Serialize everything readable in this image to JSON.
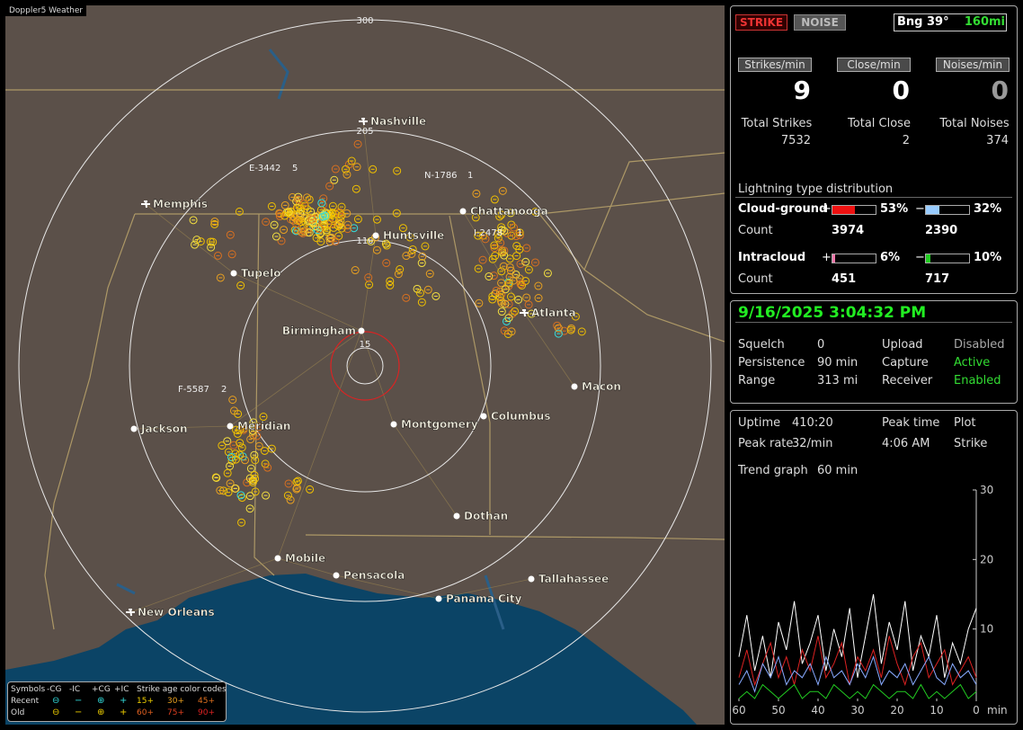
{
  "app_title": "Doppler5 Weather",
  "map": {
    "range_rings": [
      300,
      205,
      110,
      15
    ],
    "cities": [
      "Nashville",
      "Memphis",
      "Chattanooga",
      "Huntsville",
      "Tupelo",
      "Atlanta",
      "Birmingham",
      "Macon",
      "Jackson",
      "Meridian",
      "Montgomery",
      "Columbus",
      "Dothan",
      "Mobile",
      "Pensacola",
      "Tallahassee",
      "Panama City",
      "New Orleans"
    ],
    "storms": [
      {
        "id": "E-3442",
        "count": 5
      },
      {
        "id": "N-1786",
        "count": 1
      },
      {
        "id": "I-2478",
        "count": 1
      },
      {
        "id": "F-5587",
        "count": 2
      }
    ],
    "legend": {
      "symbols": "Symbols",
      "cols": [
        "-CG",
        "-IC",
        "+CG",
        "+IC"
      ],
      "age_title": "Strike age color codes",
      "rows": [
        "Recent",
        "Old"
      ],
      "recent_ages": [
        "15+",
        "30+",
        "45+"
      ],
      "old_ages": [
        "60+",
        "75+",
        "90+"
      ]
    }
  },
  "status": {
    "modes": [
      "STRIKE",
      "NOISE"
    ],
    "bearing": "Bng 39°",
    "distance": "160mi"
  },
  "rates": [
    {
      "label": "Strikes/min",
      "value": 9
    },
    {
      "label": "Close/min",
      "value": 0
    },
    {
      "label": "Noises/min",
      "value": 0
    }
  ],
  "totals": [
    {
      "label": "Total Strikes",
      "value": 7532
    },
    {
      "label": "Total Close",
      "value": 2
    },
    {
      "label": "Total Noises",
      "value": 374
    }
  ],
  "distribution": {
    "title": "Lightning type distribution",
    "signs": [
      "+",
      "−"
    ],
    "count_label": "Count",
    "rows": [
      {
        "name": "Cloud-ground",
        "plus": {
          "value": 53,
          "label": "53%"
        },
        "minus": {
          "value": 32,
          "label": "32%"
        },
        "plus_count": 3974,
        "minus_count": 2390
      },
      {
        "name": "Intracloud",
        "plus": {
          "value": 6,
          "label": "6%"
        },
        "minus": {
          "value": 10,
          "label": "10%"
        },
        "plus_count": 451,
        "minus_count": 717
      }
    ]
  },
  "datetime": "9/16/2025 3:04:32 PM",
  "settings": [
    {
      "label": "Squelch",
      "value": "0"
    },
    {
      "label": "Persistence",
      "value": "90 min"
    },
    {
      "label": "Range",
      "value": "313 mi"
    }
  ],
  "services": [
    {
      "label": "Upload",
      "value": "Disabled",
      "color": "#aaaaaa"
    },
    {
      "label": "Capture",
      "value": "Active",
      "color": "#33dd33"
    },
    {
      "label": "Receiver",
      "value": "Enabled",
      "color": "#33dd33"
    }
  ],
  "stats": {
    "uptime_label": "Uptime",
    "uptime": "410:20",
    "peak_rate_label": "Peak rate",
    "peak_rate": "32/min",
    "peak_time_label": "Peak time",
    "peak_time": "4:06 AM",
    "plot_label": "Plot",
    "plot": "Strike",
    "trend_label": "Trend graph",
    "trend_span": "60 min"
  },
  "trend": {
    "type": "line",
    "x_unit": "min",
    "xlim": [
      60,
      0
    ],
    "xticks": [
      60,
      50,
      40,
      30,
      20,
      10,
      0
    ],
    "ylim": [
      0,
      30
    ],
    "yticks": [
      10,
      20,
      30
    ],
    "x": [
      60,
      58,
      56,
      54,
      52,
      50,
      48,
      46,
      44,
      42,
      40,
      38,
      36,
      34,
      32,
      30,
      28,
      26,
      24,
      22,
      20,
      18,
      16,
      14,
      12,
      10,
      8,
      6,
      4,
      2,
      0
    ],
    "series": [
      {
        "color": "#ffffff",
        "values": [
          6,
          12,
          4,
          9,
          3,
          11,
          7,
          14,
          5,
          8,
          12,
          4,
          10,
          6,
          13,
          3,
          9,
          15,
          5,
          11,
          7,
          14,
          4,
          9,
          6,
          12,
          3,
          8,
          5,
          10,
          13
        ]
      },
      {
        "color": "#dd2222",
        "values": [
          3,
          7,
          2,
          5,
          8,
          3,
          6,
          2,
          7,
          4,
          9,
          3,
          5,
          8,
          2,
          6,
          4,
          7,
          3,
          9,
          5,
          2,
          6,
          8,
          3,
          5,
          7,
          2,
          4,
          6,
          3
        ]
      },
      {
        "color": "#88aaff",
        "values": [
          2,
          4,
          1,
          5,
          3,
          6,
          2,
          4,
          3,
          5,
          2,
          6,
          3,
          4,
          2,
          5,
          3,
          6,
          2,
          4,
          3,
          5,
          2,
          4,
          6,
          3,
          2,
          5,
          3,
          4,
          2
        ]
      },
      {
        "color": "#22cc22",
        "values": [
          0,
          1,
          0,
          2,
          1,
          0,
          1,
          2,
          0,
          1,
          1,
          0,
          2,
          1,
          0,
          1,
          0,
          2,
          1,
          0,
          1,
          1,
          0,
          2,
          0,
          1,
          0,
          1,
          2,
          0,
          1
        ]
      }
    ]
  }
}
